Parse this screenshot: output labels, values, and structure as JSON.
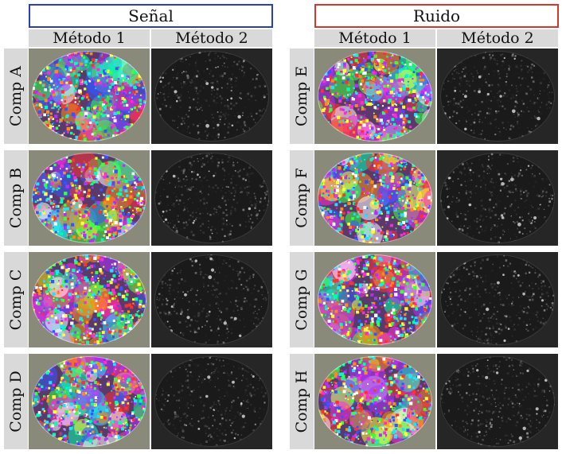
{
  "groups": [
    {
      "title": "Señal",
      "border_color": "#2a3fb5"
    },
    {
      "title": "Ruido",
      "border_color": "#d9362b"
    }
  ],
  "columns": [
    "Método 1",
    "Método 2"
  ],
  "rows": [
    {
      "label": "Comp  A",
      "group": 0
    },
    {
      "label": "Comp  B",
      "group": 0
    },
    {
      "label": "Comp  C",
      "group": 0
    },
    {
      "label": "Comp  D",
      "group": 0
    },
    {
      "label": "Comp  E",
      "group": 1
    },
    {
      "label": "Comp  F",
      "group": 1
    },
    {
      "label": "Comp  G",
      "group": 1
    },
    {
      "label": "Comp  H",
      "group": 1
    }
  ],
  "colors": {
    "method1_background": "#8a8a7a",
    "method2_background": "#262626",
    "label_background": "#d9d9d9"
  }
}
